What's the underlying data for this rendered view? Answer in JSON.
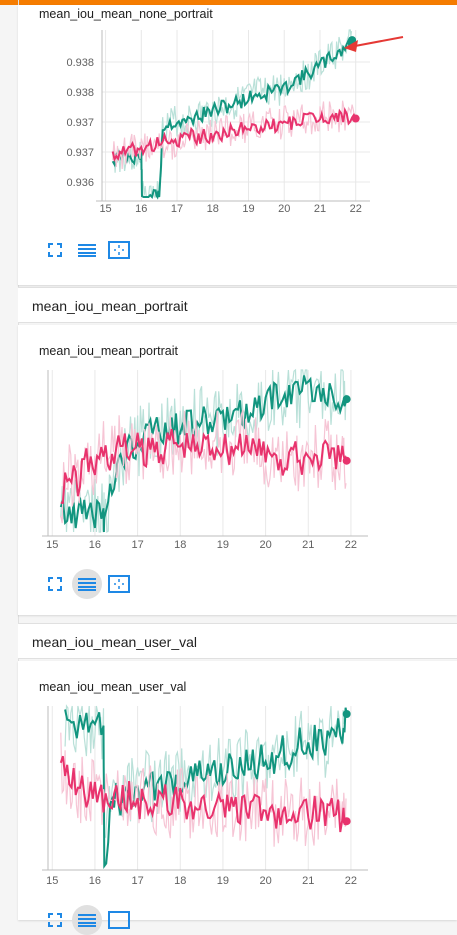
{
  "panels": [
    {
      "header": "",
      "title": "mean_iou_mean_none_portrait",
      "tools": [
        "fit-domain-icon",
        "log-scale-icon",
        "expand-icon"
      ]
    },
    {
      "header": "mean_iou_mean_portrait",
      "title": "mean_iou_mean_portrait",
      "tools": [
        "fit-domain-icon",
        "log-scale-icon",
        "expand-icon"
      ]
    },
    {
      "header": "mean_iou_mean_user_val",
      "title": "mean_iou_mean_user_val",
      "tools": [
        "fit-domain-icon",
        "log-scale-icon",
        "expand-icon"
      ]
    }
  ],
  "colors": {
    "teal": "#12957f",
    "pink": "#e8336d",
    "teal_light": "#b9e0d8",
    "pink_light": "#f6c5d5",
    "accent": "#f57c00",
    "arrow": "#e53935"
  },
  "chart_data": [
    {
      "type": "line",
      "title": "mean_iou_mean_none_portrait",
      "xticks": [
        "15",
        "16",
        "17",
        "18",
        "19",
        "20",
        "21",
        "22"
      ],
      "yticks": [
        "0.938",
        "0.938",
        "0.937",
        "0.937",
        "0.936"
      ],
      "xlim": [
        14.9,
        22.4
      ],
      "ylim": [
        0.9356,
        0.9389
      ],
      "series": [
        {
          "color": "teal",
          "x": [
            15.2,
            15.4,
            15.6,
            15.8,
            15.9,
            16.0,
            16.02,
            16.2,
            16.4,
            16.5,
            16.6,
            16.8,
            17.0,
            17.2,
            17.4,
            17.6,
            17.8,
            18.0,
            18.2,
            18.4,
            18.6,
            18.8,
            19.0,
            19.2,
            19.4,
            19.6,
            19.8,
            20.0,
            20.2,
            20.4,
            20.6,
            20.8,
            21.0,
            21.2,
            21.4,
            21.6,
            21.8,
            21.9
          ],
          "y": [
            0.93635,
            0.9364,
            0.93642,
            0.9364,
            0.93644,
            0.93642,
            0.9356,
            0.9356,
            0.9356,
            0.9356,
            0.937,
            0.93705,
            0.9371,
            0.93705,
            0.93715,
            0.9372,
            0.93725,
            0.9373,
            0.93735,
            0.9374,
            0.93745,
            0.9375,
            0.93755,
            0.93765,
            0.9376,
            0.9377,
            0.93775,
            0.9377,
            0.9379,
            0.93795,
            0.938,
            0.9381,
            0.9382,
            0.9383,
            0.9384,
            0.9385,
            0.9386,
            0.9387
          ]
        },
        {
          "color": "pink",
          "x": [
            15.2,
            15.4,
            15.6,
            15.8,
            16.0,
            16.2,
            16.4,
            16.6,
            16.8,
            17.0,
            17.2,
            17.4,
            17.6,
            17.8,
            18.0,
            18.2,
            18.4,
            18.6,
            18.8,
            19.0,
            19.2,
            19.4,
            19.6,
            19.8,
            20.0,
            20.2,
            20.4,
            20.6,
            20.8,
            21.0,
            21.2,
            21.4,
            21.6,
            21.8,
            22.0
          ],
          "y": [
            0.9364,
            0.9365,
            0.93645,
            0.93655,
            0.9365,
            0.9366,
            0.93665,
            0.9367,
            0.93665,
            0.9367,
            0.93675,
            0.9368,
            0.93678,
            0.93682,
            0.9368,
            0.93685,
            0.9369,
            0.93688,
            0.93695,
            0.9369,
            0.937,
            0.93698,
            0.93705,
            0.937,
            0.9371,
            0.93705,
            0.93715,
            0.9371,
            0.93718,
            0.93715,
            0.9372,
            0.93718,
            0.93722,
            0.93718,
            0.93715
          ]
        }
      ]
    },
    {
      "type": "line",
      "title": "mean_iou_mean_portrait",
      "xticks": [
        "15",
        "16",
        "17",
        "18",
        "19",
        "20",
        "21",
        "22"
      ],
      "yticks": [],
      "xlim": [
        14.9,
        22.4
      ],
      "ylim": [
        0,
        1
      ],
      "series": [
        {
          "color": "teal",
          "x": [
            15.2,
            15.4,
            15.6,
            15.8,
            16.0,
            16.2,
            16.22,
            16.4,
            16.6,
            16.8,
            17.0,
            17.2,
            17.4,
            17.6,
            17.8,
            18.0,
            18.2,
            18.4,
            18.6,
            18.8,
            19.0,
            19.2,
            19.4,
            19.6,
            19.8,
            20.0,
            20.2,
            20.4,
            20.6,
            20.8,
            21.0,
            21.2,
            21.4,
            21.6,
            21.8,
            21.9
          ],
          "y": [
            0.12,
            0.12,
            0.12,
            0.12,
            0.12,
            0.12,
            0.0,
            0.3,
            0.45,
            0.5,
            0.55,
            0.58,
            0.62,
            0.6,
            0.65,
            0.62,
            0.68,
            0.66,
            0.7,
            0.66,
            0.72,
            0.7,
            0.75,
            0.72,
            0.8,
            0.76,
            0.85,
            0.8,
            0.88,
            0.82,
            0.92,
            0.85,
            0.88,
            0.8,
            0.85,
            0.82
          ]
        },
        {
          "color": "pink",
          "x": [
            15.2,
            15.4,
            15.6,
            15.8,
            16.0,
            16.2,
            16.4,
            16.6,
            16.8,
            17.0,
            17.2,
            17.4,
            17.6,
            17.8,
            18.0,
            18.2,
            18.4,
            18.6,
            18.8,
            19.0,
            19.2,
            19.4,
            19.6,
            19.8,
            20.0,
            20.2,
            20.4,
            20.6,
            20.8,
            21.0,
            21.2,
            21.4,
            21.6,
            21.8,
            21.9
          ],
          "y": [
            0.25,
            0.35,
            0.3,
            0.45,
            0.4,
            0.5,
            0.45,
            0.55,
            0.5,
            0.52,
            0.48,
            0.55,
            0.5,
            0.58,
            0.52,
            0.55,
            0.5,
            0.56,
            0.52,
            0.55,
            0.5,
            0.57,
            0.48,
            0.55,
            0.45,
            0.52,
            0.4,
            0.5,
            0.42,
            0.48,
            0.45,
            0.5,
            0.42,
            0.48,
            0.44
          ]
        }
      ]
    },
    {
      "type": "line",
      "title": "mean_iou_mean_user_val",
      "xticks": [
        "15",
        "16",
        "17",
        "18",
        "19",
        "20",
        "21",
        "22"
      ],
      "yticks": [],
      "xlim": [
        14.9,
        22.4
      ],
      "ylim": [
        0,
        1
      ],
      "series": [
        {
          "color": "teal",
          "x": [
            15.3,
            15.5,
            15.8,
            16.0,
            16.2,
            16.22,
            16.4,
            16.6,
            16.8,
            17.0,
            17.2,
            17.4,
            17.6,
            17.8,
            18.0,
            18.2,
            18.4,
            18.6,
            18.8,
            19.0,
            19.2,
            19.4,
            19.6,
            19.8,
            20.0,
            20.2,
            20.4,
            20.6,
            20.8,
            21.0,
            21.2,
            21.4,
            21.6,
            21.8,
            21.9
          ],
          "y": [
            0.88,
            0.88,
            0.88,
            0.88,
            0.88,
            0.0,
            0.45,
            0.4,
            0.48,
            0.45,
            0.5,
            0.48,
            0.52,
            0.5,
            0.55,
            0.52,
            0.58,
            0.55,
            0.6,
            0.58,
            0.62,
            0.6,
            0.65,
            0.62,
            0.7,
            0.66,
            0.72,
            0.7,
            0.78,
            0.74,
            0.8,
            0.76,
            0.85,
            0.82,
            0.95
          ]
        },
        {
          "color": "pink",
          "x": [
            15.2,
            15.4,
            15.6,
            15.8,
            16.0,
            16.2,
            16.4,
            16.6,
            16.8,
            17.0,
            17.2,
            17.4,
            17.6,
            17.8,
            18.0,
            18.2,
            18.4,
            18.6,
            18.8,
            19.0,
            19.2,
            19.4,
            19.6,
            19.8,
            20.0,
            20.2,
            20.4,
            20.6,
            20.8,
            21.0,
            21.2,
            21.4,
            21.6,
            21.8,
            21.9
          ],
          "y": [
            0.65,
            0.55,
            0.5,
            0.45,
            0.48,
            0.42,
            0.45,
            0.4,
            0.44,
            0.38,
            0.42,
            0.4,
            0.44,
            0.38,
            0.42,
            0.36,
            0.4,
            0.35,
            0.4,
            0.36,
            0.38,
            0.34,
            0.38,
            0.35,
            0.38,
            0.32,
            0.36,
            0.34,
            0.36,
            0.32,
            0.35,
            0.3,
            0.34,
            0.3,
            0.28
          ]
        }
      ]
    }
  ]
}
